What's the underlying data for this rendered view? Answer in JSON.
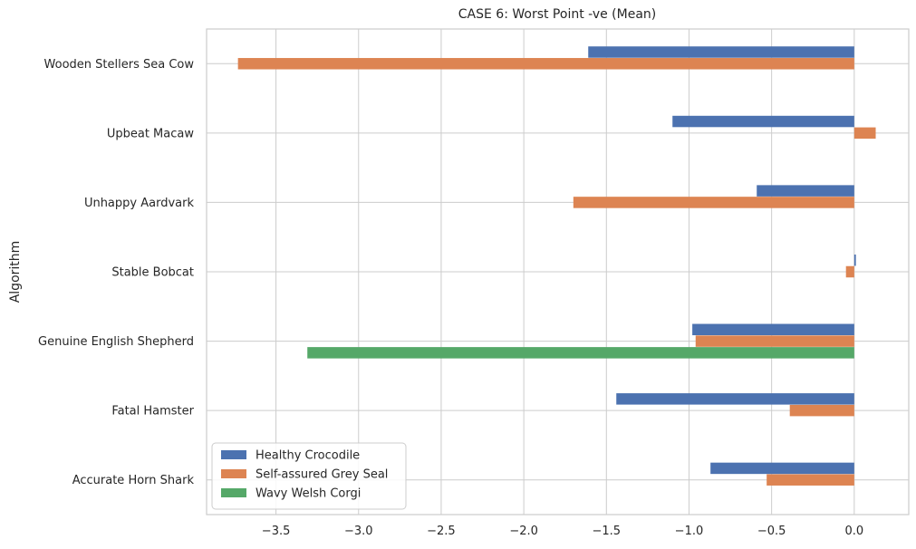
{
  "chart_data": {
    "type": "bar",
    "orientation": "horizontal",
    "title": "CASE 6: Worst Point -ve (Mean)",
    "xlabel": "",
    "ylabel": "Algorithm",
    "categories": [
      "Accurate Horn Shark",
      "Fatal Hamster",
      "Genuine English Shepherd",
      "Stable Bobcat",
      "Unhappy Aardvark",
      "Upbeat Macaw",
      "Wooden Stellers Sea Cow"
    ],
    "series": [
      {
        "name": "Healthy Crocodile",
        "color": "#4c72b0",
        "values": [
          -0.87,
          -1.44,
          -0.98,
          0.01,
          -0.59,
          -1.1,
          -1.61
        ]
      },
      {
        "name": "Self-assured Grey Seal",
        "color": "#dd8452",
        "values": [
          -0.53,
          -0.39,
          -0.96,
          -0.05,
          -1.7,
          0.13,
          -3.73
        ]
      },
      {
        "name": "Wavy Welsh Corgi",
        "color": "#55a868",
        "values": [
          0,
          0,
          -3.31,
          0,
          0,
          0,
          0
        ]
      }
    ],
    "xticks": [
      "−3.5",
      "−3.0",
      "−2.5",
      "−2.0",
      "−1.5",
      "−1.0",
      "−0.5",
      "0.0"
    ],
    "xtick_values": [
      -3.5,
      -3.0,
      -2.5,
      -2.0,
      -1.5,
      -1.0,
      -0.5,
      0.0
    ],
    "xlim": [
      -3.92,
      0.33
    ],
    "grid": true,
    "legend_position": "lower-left"
  }
}
